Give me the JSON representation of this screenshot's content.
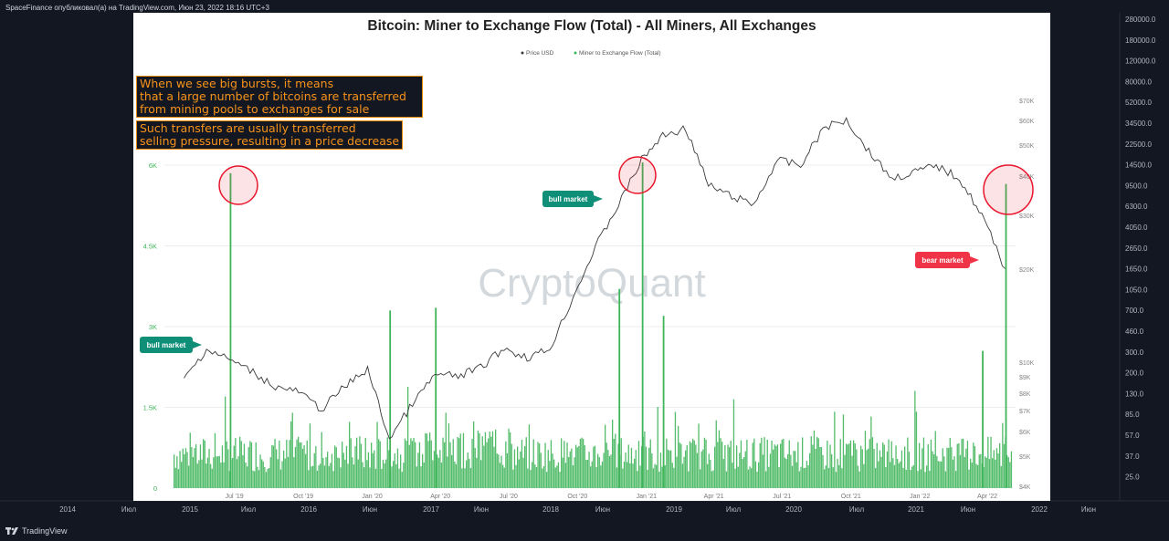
{
  "header": {
    "publisher_line": "SpaceFinance опубликовал(а) на TradingView.com, Июн 23, 2022 18:16 UTC+3"
  },
  "footer": {
    "brand": "TradingView"
  },
  "annotations": {
    "note1_lines": [
      "When we see big bursts, it means",
      "that a large number of bitcoins are transferred",
      "from mining pools to exchanges for sale"
    ],
    "note2_lines": [
      "Such transfers are usually transferred",
      "selling pressure, resulting in a price decrease"
    ]
  },
  "colors": {
    "background": "#131722",
    "panel": "#ffffff",
    "flow": "#3fb55a",
    "price_line": "#3a3a3a",
    "note_border": "#e58a0d",
    "note_text": "#f7931a",
    "bull_tag": "#0f8f78",
    "bear_tag": "#ee3446",
    "circle": "#e8162c"
  },
  "chart_data": {
    "type": "line",
    "title": "Bitcoin: Miner to Exchange Flow (Total) - All Miners, All Exchanges",
    "legend": [
      "Price USD",
      "Miner to Exchange Flow (Total)"
    ],
    "legend_placement": "top-center",
    "watermark": "CryptoQuant",
    "grid": true,
    "x_tick_labels": [
      "Jul '19",
      "Oct '19",
      "Jan '20",
      "Apr '20",
      "Jul '20",
      "Oct '20",
      "Jan '21",
      "Apr '21",
      "Jul '21",
      "Oct '21",
      "Jan '22",
      "Apr '22"
    ],
    "left_axis": {
      "ticks": [
        "0",
        "1.5K",
        "3K",
        "4.5K",
        "6K"
      ],
      "range": [
        0,
        6000
      ]
    },
    "right_axis_price": {
      "upper_ticks": [
        "$70K",
        "$60K",
        "$50K",
        "$40K",
        "$30K",
        "$20K"
      ],
      "lower_ticks": [
        "$10K",
        "$9K",
        "$8K",
        "$7K",
        "$6K",
        "$5K",
        "$4K"
      ]
    },
    "tradingview_price_axis": [
      "280000.0",
      "180000.0",
      "120000.0",
      "80000.0",
      "52000.0",
      "34500.0",
      "22500.0",
      "14500.0",
      "9500.0",
      "6300.0",
      "4050.0",
      "2650.0",
      "1650.0",
      "1050.0",
      "700.0",
      "460.0",
      "300.0",
      "200.0",
      "130.0",
      "85.0",
      "57.0",
      "37.0",
      "25.0"
    ],
    "tradingview_time_axis": [
      "2014",
      "Июл",
      "2015",
      "Июл",
      "2016",
      "Июн",
      "2017",
      "Июн",
      "2018",
      "Июн",
      "2019",
      "Июл",
      "2020",
      "Июл",
      "2021",
      "Июн",
      "2022",
      "Июн"
    ],
    "price_usd": {
      "name": "Price USD",
      "x": [
        "2019-06",
        "2019-07",
        "2019-08",
        "2019-09",
        "2019-10",
        "2019-11",
        "2019-12",
        "2020-01",
        "2020-02",
        "2020-03",
        "2020-04",
        "2020-05",
        "2020-06",
        "2020-07",
        "2020-08",
        "2020-09",
        "2020-10",
        "2020-11",
        "2020-12",
        "2021-01",
        "2021-02",
        "2021-03",
        "2021-04",
        "2021-05",
        "2021-06",
        "2021-07",
        "2021-08",
        "2021-09",
        "2021-10",
        "2021-11",
        "2021-12",
        "2022-01",
        "2022-02",
        "2022-03",
        "2022-04",
        "2022-05",
        "2022-06"
      ],
      "values": [
        9000,
        11500,
        10500,
        9500,
        8500,
        8200,
        7200,
        8500,
        9700,
        5800,
        7500,
        9300,
        9200,
        9800,
        11600,
        10700,
        11500,
        16500,
        24000,
        33000,
        46000,
        55000,
        58000,
        38000,
        35000,
        33000,
        46000,
        44000,
        58000,
        62000,
        49000,
        40000,
        42000,
        44000,
        40000,
        30500,
        20500
      ]
    },
    "miner_to_exchange_flow": {
      "name": "Miner to Exchange Flow (Total)",
      "typical_range": [
        300,
        1500
      ],
      "spikes": [
        {
          "date": "2019-08",
          "value": 5850
        },
        {
          "date": "2020-03",
          "value": 3300
        },
        {
          "date": "2020-05",
          "value": 3350
        },
        {
          "date": "2021-01",
          "value": 3700
        },
        {
          "date": "2021-02",
          "value": 6050
        },
        {
          "date": "2021-03",
          "value": 3200
        },
        {
          "date": "2022-05",
          "value": 2550
        },
        {
          "date": "2022-06",
          "value": 5650
        }
      ]
    },
    "labels": {
      "bull_market_1": "bull market",
      "bull_market_2": "bull market",
      "bear_market": "bear market"
    }
  }
}
